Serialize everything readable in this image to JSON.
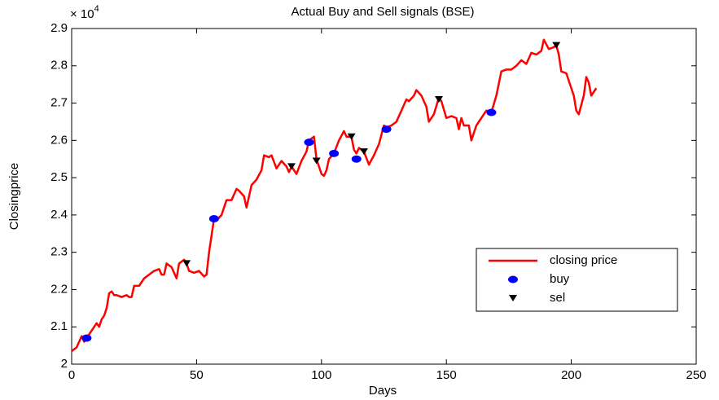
{
  "chart_data": {
    "type": "line",
    "title": "Actual Buy and Sell signals (BSE)",
    "x_label": "Days",
    "y_label": "Closingprice",
    "y_multiplier": {
      "base": "× 10",
      "exponent": "4"
    },
    "xlim": [
      0,
      250
    ],
    "xticks": [
      0,
      50,
      100,
      150,
      200,
      250
    ],
    "ylim": [
      2,
      2.9
    ],
    "yticks": [
      2,
      2.1,
      2.2,
      2.3,
      2.4,
      2.5,
      2.6,
      2.7,
      2.8,
      2.9
    ],
    "grid": false,
    "legend_position": "lower-right",
    "series": [
      {
        "name": "closing price",
        "color": "#ff0000",
        "marker": "none",
        "x": [
          0,
          2,
          4,
          5,
          6,
          8,
          10,
          11,
          12,
          13,
          14,
          15,
          16,
          17,
          18,
          20,
          22,
          23,
          24,
          25,
          27,
          29,
          31,
          33,
          35,
          36,
          37,
          38,
          40,
          42,
          43,
          45,
          46,
          47,
          49,
          51,
          53,
          54,
          55,
          57,
          58,
          60,
          62,
          64,
          66,
          67,
          69,
          70,
          72,
          74,
          76,
          77,
          79,
          80,
          82,
          84,
          86,
          87,
          88,
          90,
          92,
          94,
          95,
          97,
          98,
          100,
          101,
          102,
          103,
          105,
          107,
          109,
          110,
          112,
          113,
          114,
          115,
          117,
          119,
          121,
          123,
          125,
          126,
          128,
          130,
          132,
          134,
          135,
          137,
          138,
          140,
          142,
          143,
          145,
          147,
          148,
          150,
          152,
          154,
          155,
          156,
          157,
          159,
          160,
          162,
          164,
          166,
          168,
          170,
          172,
          174,
          176,
          178,
          180,
          182,
          184,
          186,
          188,
          189,
          191,
          193,
          194,
          195,
          196,
          198,
          199,
          201,
          202,
          203,
          205,
          206,
          207,
          208,
          210
        ],
        "values": [
          2.035,
          2.045,
          2.075,
          2.06,
          2.07,
          2.09,
          2.11,
          2.1,
          2.12,
          2.13,
          2.15,
          2.19,
          2.195,
          2.185,
          2.185,
          2.18,
          2.185,
          2.18,
          2.18,
          2.21,
          2.21,
          2.23,
          2.24,
          2.25,
          2.255,
          2.24,
          2.24,
          2.27,
          2.26,
          2.23,
          2.27,
          2.28,
          2.27,
          2.25,
          2.245,
          2.25,
          2.235,
          2.24,
          2.3,
          2.39,
          2.385,
          2.4,
          2.44,
          2.44,
          2.47,
          2.465,
          2.45,
          2.42,
          2.48,
          2.495,
          2.52,
          2.56,
          2.555,
          2.56,
          2.525,
          2.545,
          2.53,
          2.515,
          2.53,
          2.51,
          2.545,
          2.57,
          2.6,
          2.61,
          2.55,
          2.51,
          2.505,
          2.52,
          2.55,
          2.565,
          2.6,
          2.625,
          2.61,
          2.61,
          2.575,
          2.565,
          2.58,
          2.57,
          2.535,
          2.56,
          2.59,
          2.64,
          2.635,
          2.64,
          2.65,
          2.68,
          2.71,
          2.705,
          2.72,
          2.735,
          2.72,
          2.69,
          2.65,
          2.67,
          2.715,
          2.705,
          2.66,
          2.665,
          2.66,
          2.63,
          2.66,
          2.64,
          2.64,
          2.6,
          2.64,
          2.66,
          2.68,
          2.675,
          2.72,
          2.785,
          2.79,
          2.79,
          2.8,
          2.815,
          2.805,
          2.835,
          2.83,
          2.84,
          2.87,
          2.845,
          2.85,
          2.855,
          2.83,
          2.785,
          2.78,
          2.76,
          2.72,
          2.68,
          2.67,
          2.72,
          2.77,
          2.755,
          2.72,
          2.74
        ]
      },
      {
        "name": "buy",
        "color": "#0000ff",
        "marker": "ellipse",
        "x": [
          6,
          57,
          95,
          105,
          114,
          126,
          168
        ],
        "values": [
          2.07,
          2.39,
          2.595,
          2.565,
          2.55,
          2.63,
          2.675
        ]
      },
      {
        "name": "sel",
        "color": "#000000",
        "marker": "triangle-down",
        "x": [
          46,
          88,
          98,
          112,
          117,
          147,
          194
        ],
        "values": [
          2.27,
          2.53,
          2.545,
          2.61,
          2.57,
          2.71,
          2.855
        ]
      }
    ]
  }
}
